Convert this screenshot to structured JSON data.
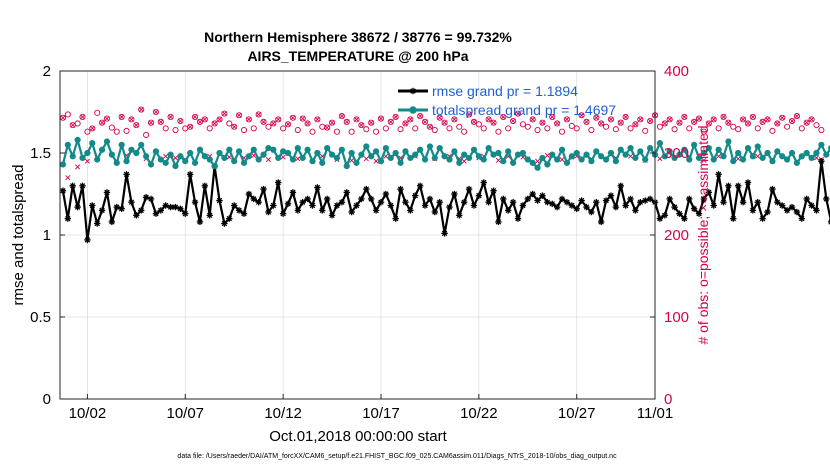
{
  "chart_data": {
    "type": "line",
    "title": "Northern Hemisphere 38672 / 38776 = 99.732%",
    "subtitle": "AIRS_TEMPERATURE @ 200 hPa",
    "xlabel": "Oct.01,2018 00:00:00 start",
    "ylabel": "rmse and totalspread",
    "y2label": "# of obs: o=possible; ×=assimilated",
    "footnote": "data file: /Users/raeder/DAI/ATM_forcXX/CAM6_setup/f.e21.FHIST_BGC.f09_025.CAM6assim.011/Diags_NTrS_2018-10/obs_diag_output.nc",
    "xlim": [
      0.6,
      31.0
    ],
    "ylim": [
      0,
      2
    ],
    "y2lim": [
      0,
      400
    ],
    "xticks": [
      {
        "value": 2,
        "label": "10/02"
      },
      {
        "value": 7,
        "label": "10/07"
      },
      {
        "value": 12,
        "label": "10/12"
      },
      {
        "value": 17,
        "label": "10/17"
      },
      {
        "value": 22,
        "label": "10/22"
      },
      {
        "value": 27,
        "label": "10/27"
      },
      {
        "value": 32,
        "label": "11/01"
      }
    ],
    "yticks": [
      {
        "value": 0,
        "label": "0"
      },
      {
        "value": 0.5,
        "label": "0.5"
      },
      {
        "value": 1,
        "label": "1"
      },
      {
        "value": 1.5,
        "label": "1.5"
      },
      {
        "value": 2,
        "label": "2"
      }
    ],
    "y2ticks": [
      {
        "value": 0,
        "label": "0"
      },
      {
        "value": 100,
        "label": "100"
      },
      {
        "value": 200,
        "label": "200"
      },
      {
        "value": 300,
        "label": "300"
      },
      {
        "value": 400,
        "label": "400"
      }
    ],
    "legend_position": "top-right",
    "x_start": 0.75,
    "x_step": 0.25,
    "series": [
      {
        "name": "rmse",
        "legend": "rmse grand pr = 1.1894",
        "color": "#000000",
        "marker": "asterisk",
        "values": [
          1.27,
          1.1,
          1.3,
          1.17,
          1.3,
          0.97,
          1.18,
          1.07,
          1.15,
          1.26,
          1.08,
          1.17,
          1.16,
          1.37,
          1.2,
          1.12,
          1.15,
          1.23,
          1.22,
          1.13,
          1.15,
          1.18,
          1.17,
          1.17,
          1.16,
          1.13,
          1.37,
          1.2,
          1.08,
          1.3,
          1.12,
          1.42,
          1.21,
          1.07,
          1.1,
          1.18,
          1.15,
          1.13,
          1.25,
          1.22,
          1.2,
          1.28,
          1.14,
          1.18,
          1.32,
          1.13,
          1.19,
          1.26,
          1.15,
          1.2,
          1.22,
          1.18,
          1.29,
          1.15,
          1.22,
          1.12,
          1.18,
          1.2,
          1.26,
          1.14,
          1.18,
          1.22,
          1.28,
          1.22,
          1.15,
          1.2,
          1.25,
          1.18,
          1.1,
          1.28,
          1.2,
          1.15,
          1.24,
          1.3,
          1.18,
          1.22,
          1.14,
          1.2,
          1.01,
          1.17,
          1.25,
          1.12,
          1.2,
          1.28,
          1.18,
          1.24,
          1.32,
          1.2,
          1.27,
          1.08,
          1.22,
          1.15,
          1.2,
          1.1,
          1.18,
          1.22,
          1.25,
          1.21,
          1.24,
          1.2,
          1.19,
          1.17,
          1.22,
          1.2,
          1.18,
          1.16,
          1.21,
          1.17,
          1.14,
          1.2,
          1.08,
          1.21,
          1.24,
          1.17,
          1.3,
          1.18,
          1.22,
          1.15,
          1.2,
          1.21,
          1.22,
          1.2,
          1.1,
          1.12,
          1.22,
          1.17,
          1.13,
          1.1,
          1.22,
          1.16,
          1.13,
          1.22,
          1.26,
          1.18,
          1.37,
          1.2,
          1.3,
          1.1,
          1.3,
          1.2,
          1.32,
          1.15,
          1.2,
          1.1,
          1.14,
          1.28,
          1.2,
          1.18,
          1.15,
          1.17,
          1.14,
          1.1,
          1.22,
          1.18,
          1.15,
          1.45,
          1.22,
          1.08
        ]
      },
      {
        "name": "totalspread",
        "legend": "totalspread grand pr = 1.4697",
        "color": "#138a8a",
        "marker": "circle",
        "values": [
          1.43,
          1.55,
          1.48,
          1.58,
          1.47,
          1.5,
          1.56,
          1.46,
          1.52,
          1.57,
          1.49,
          1.44,
          1.55,
          1.45,
          1.52,
          1.5,
          1.55,
          1.48,
          1.43,
          1.51,
          1.46,
          1.44,
          1.49,
          1.42,
          1.48,
          1.45,
          1.5,
          1.44,
          1.52,
          1.48,
          1.46,
          1.42,
          1.5,
          1.47,
          1.52,
          1.45,
          1.51,
          1.44,
          1.48,
          1.52,
          1.46,
          1.49,
          1.53,
          1.52,
          1.47,
          1.51,
          1.5,
          1.46,
          1.53,
          1.47,
          1.52,
          1.45,
          1.5,
          1.44,
          1.53,
          1.49,
          1.47,
          1.52,
          1.42,
          1.5,
          1.44,
          1.49,
          1.54,
          1.48,
          1.51,
          1.45,
          1.53,
          1.47,
          1.5,
          1.44,
          1.51,
          1.47,
          1.49,
          1.52,
          1.46,
          1.54,
          1.47,
          1.53,
          1.48,
          1.46,
          1.51,
          1.44,
          1.49,
          1.47,
          1.52,
          1.48,
          1.46,
          1.53,
          1.49,
          1.5,
          1.45,
          1.51,
          1.44,
          1.49,
          1.5,
          1.46,
          1.44,
          1.41,
          1.47,
          1.43,
          1.49,
          1.46,
          1.52,
          1.44,
          1.48,
          1.5,
          1.46,
          1.49,
          1.45,
          1.51,
          1.48,
          1.46,
          1.5,
          1.45,
          1.52,
          1.49,
          1.53,
          1.47,
          1.51,
          1.46,
          1.53,
          1.49,
          1.56,
          1.48,
          1.51,
          1.47,
          1.49,
          1.52,
          1.46,
          1.55,
          1.47,
          1.5,
          1.53,
          1.46,
          1.52,
          1.48,
          1.57,
          1.45,
          1.5,
          1.46,
          1.53,
          1.48,
          1.54,
          1.47,
          1.5,
          1.45,
          1.51,
          1.48,
          1.46,
          1.5,
          1.44,
          1.48,
          1.5,
          1.47,
          1.5,
          1.55,
          1.49,
          1.53
        ]
      }
    ],
    "obs_possible": {
      "name": "possible",
      "marker": "o",
      "color": "#d6004e",
      "values": [
        343,
        347,
        334,
        336,
        344,
        326,
        330,
        349,
        337,
        342,
        331,
        326,
        344,
        327,
        341,
        334,
        353,
        322,
        337,
        350,
        338,
        330,
        344,
        328,
        339,
        330,
        332,
        344,
        338,
        341,
        330,
        336,
        341,
        348,
        336,
        332,
        346,
        328,
        341,
        330,
        347,
        338,
        332,
        336,
        341,
        330,
        335,
        343,
        328,
        342,
        336,
        326,
        341,
        332,
        331,
        337,
        326,
        345,
        338,
        326,
        341,
        334,
        329,
        337,
        326,
        342,
        330,
        338,
        344,
        329,
        336,
        341,
        330,
        345,
        338,
        332,
        328,
        343,
        337,
        330,
        341,
        332,
        326,
        347,
        338,
        335,
        330,
        341,
        337,
        326,
        344,
        330,
        339,
        348,
        335,
        332,
        341,
        328,
        337,
        330,
        344,
        336,
        326,
        341,
        333,
        330,
        346,
        338,
        328,
        343,
        336,
        332,
        341,
        329,
        337,
        344,
        330,
        335,
        341,
        327,
        339,
        346,
        332,
        336,
        341,
        329,
        337,
        344,
        330,
        338,
        342,
        326,
        336,
        341,
        330,
        344,
        337,
        332,
        329,
        341,
        336,
        344,
        330,
        338,
        341,
        327,
        336,
        343,
        332,
        339,
        345,
        330,
        337,
        341,
        334,
        328
      ]
    },
    "obs_assimilated": {
      "name": "assimilated",
      "marker": "x",
      "color": "#d6004e",
      "values": [
        343,
        270,
        334,
        283,
        344,
        290,
        330,
        295,
        337,
        342,
        298,
        288,
        344,
        297,
        341,
        334,
        353,
        293,
        337,
        350,
        338,
        296,
        344,
        294,
        339,
        292,
        332,
        344,
        338,
        341,
        296,
        336,
        341,
        348,
        295,
        332,
        346,
        294,
        341,
        297,
        347,
        338,
        292,
        336,
        341,
        295,
        335,
        343,
        293,
        342,
        336,
        290,
        341,
        296,
        331,
        337,
        292,
        345,
        338,
        291,
        341,
        334,
        293,
        337,
        290,
        342,
        296,
        338,
        344,
        294,
        336,
        341,
        296,
        345,
        338,
        332,
        293,
        343,
        337,
        296,
        341,
        293,
        290,
        347,
        338,
        294,
        296,
        341,
        337,
        291,
        344,
        296,
        339,
        348,
        295,
        293,
        341,
        290,
        337,
        297,
        344,
        336,
        292,
        341,
        295,
        296,
        346,
        338,
        293,
        343,
        336,
        292,
        341,
        294,
        337,
        344,
        296,
        335,
        341,
        291,
        339,
        346,
        293,
        336,
        341,
        294,
        337,
        344,
        296,
        338,
        342,
        291,
        336,
        341,
        296,
        344,
        337,
        292,
        293,
        341,
        336,
        344,
        296,
        338,
        341,
        290,
        336,
        343,
        293,
        339,
        345,
        296,
        337,
        341,
        294,
        292
      ]
    }
  }
}
